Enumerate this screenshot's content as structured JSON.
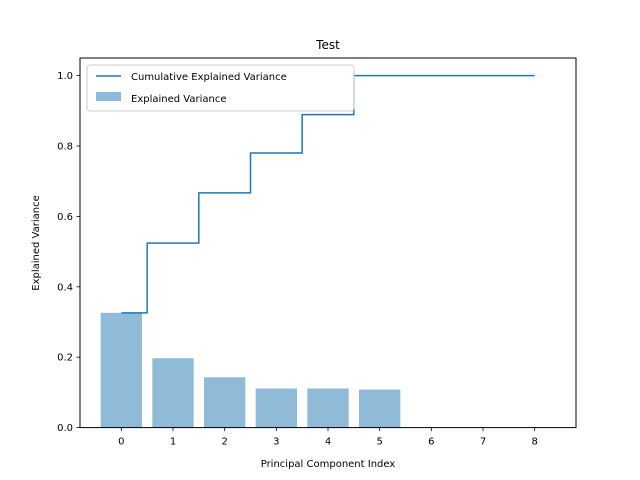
{
  "chart_data": {
    "type": "bar",
    "title": "Test",
    "xlabel": "Principal Component Index",
    "ylabel": "Explained Variance",
    "xlim": [
      -0.8,
      8.8
    ],
    "ylim": [
      0,
      1.05
    ],
    "x_ticks": [
      0,
      1,
      2,
      3,
      4,
      5,
      6,
      7,
      8
    ],
    "y_ticks": [
      0.0,
      0.2,
      0.4,
      0.6,
      0.8,
      1.0
    ],
    "y_tick_labels": [
      "0.0",
      "0.2",
      "0.4",
      "0.6",
      "0.8",
      "1.0"
    ],
    "grid": false,
    "legend_position": "upper-left",
    "series": [
      {
        "name": "Explained Variance",
        "type": "bar",
        "color": "#8fbbd9",
        "x": [
          0,
          1,
          2,
          3,
          4,
          5
        ],
        "values": [
          0.326,
          0.197,
          0.143,
          0.111,
          0.111,
          0.108
        ]
      },
      {
        "name": "Cumulative Explained Variance",
        "type": "step",
        "color": "#1f77b4",
        "x": [
          0,
          1,
          2,
          3,
          4,
          5,
          6,
          7,
          8
        ],
        "values": [
          0.326,
          0.524,
          0.667,
          0.78,
          0.889,
          1.0,
          1.0,
          1.0,
          1.0
        ]
      }
    ]
  }
}
